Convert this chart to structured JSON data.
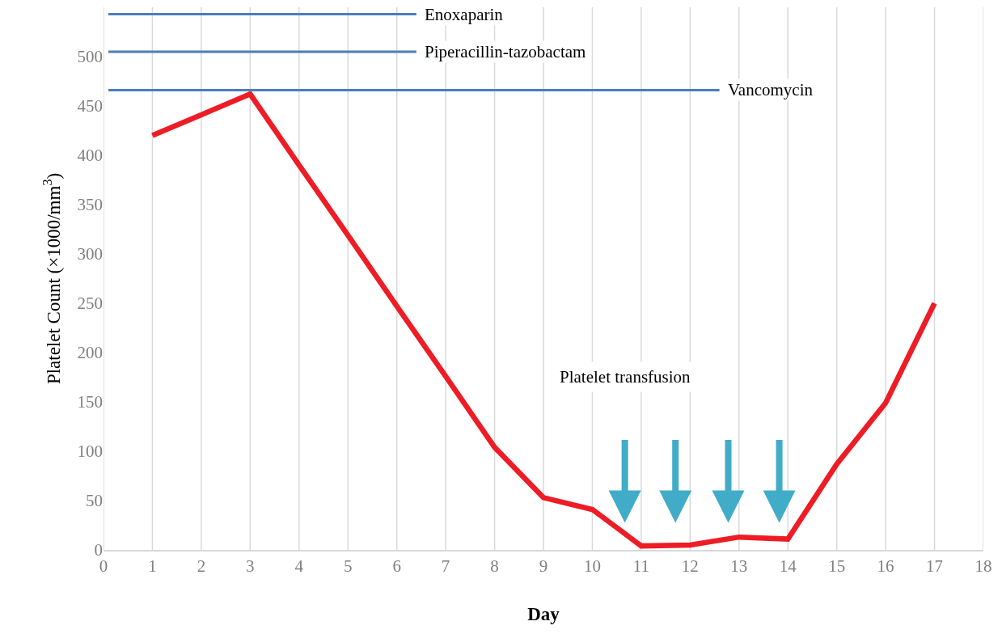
{
  "chart_data": {
    "type": "line",
    "xlabel": "Day",
    "ylabel": "Platelet Count (×1000/mm$^{3}$)",
    "x": [
      1,
      2,
      3,
      4,
      5,
      6,
      7,
      8,
      9,
      10,
      11,
      12,
      13,
      14,
      15,
      16,
      17
    ],
    "series": [
      {
        "color": "#ee1c25",
        "values": [
          420,
          441,
          462,
          390,
          319,
          247,
          176,
          104,
          53,
          41,
          4,
          5,
          13,
          11,
          87,
          149,
          250
        ]
      },
      {
        "name": "Enoxaparin",
        "color": "#4a7ebb",
        "x": [
          0.1,
          6.4
        ],
        "values": [
          543,
          543
        ]
      },
      {
        "name": "Piperacillin-tazobactam",
        "color": "#4a7ebb",
        "x": [
          0.1,
          6.4
        ],
        "values": [
          505,
          505
        ]
      },
      {
        "name": "Vancomycin",
        "color": "#4a7ebb",
        "x": [
          0.1,
          12.6
        ],
        "values": [
          466,
          466
        ]
      }
    ],
    "annotations": [
      "Platelet transfusion"
    ],
    "xlim": [
      0,
      18
    ],
    "xticks": [
      0,
      1,
      2,
      3,
      4,
      5,
      6,
      7,
      8,
      9,
      10,
      11,
      12,
      13,
      14,
      15,
      16,
      17,
      18
    ],
    "ylim": [
      0,
      550
    ],
    "yticks": [
      0,
      50,
      100,
      150,
      200,
      250,
      300,
      350,
      400,
      450,
      500
    ],
    "grid": "x",
    "legend": false,
    "marker": "none",
    "line_style": "solid"
  }
}
